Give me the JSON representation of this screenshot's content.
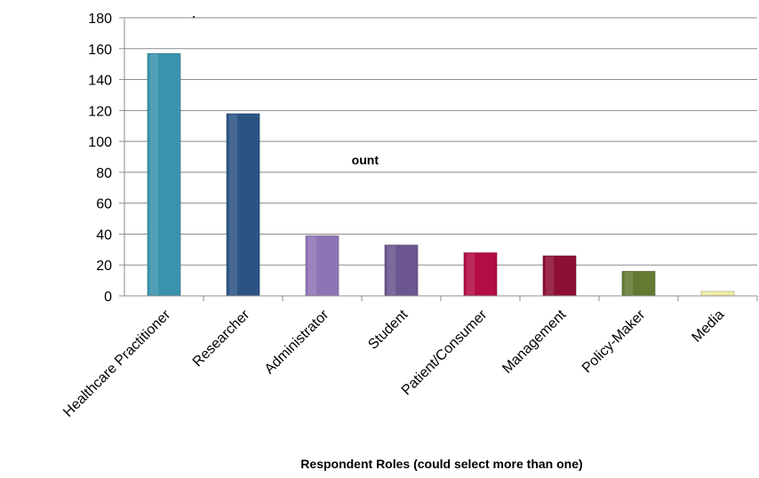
{
  "chart_data": {
    "type": "bar",
    "title": "",
    "xlabel": "Respondent Roles (could select more than one)",
    "ylabel": "Count",
    "ylabel_visible": "ount",
    "ylim": [
      0,
      180
    ],
    "yticks": [
      0,
      20,
      40,
      60,
      80,
      100,
      120,
      140,
      160,
      180
    ],
    "grid": true,
    "legend": "none",
    "categories": [
      "Healthcare Practitioner",
      "Researcher",
      "Administrator",
      "Student",
      "Patient/Consumer",
      "Management",
      "Policy-Maker",
      "Media"
    ],
    "values": [
      157,
      118,
      39,
      33,
      28,
      26,
      16,
      3
    ],
    "colors": [
      "#3A93AE",
      "#2B5485",
      "#8F74B5",
      "#6C5690",
      "#B30D43",
      "#8E0F36",
      "#647A33",
      "#EFEBA8"
    ]
  }
}
